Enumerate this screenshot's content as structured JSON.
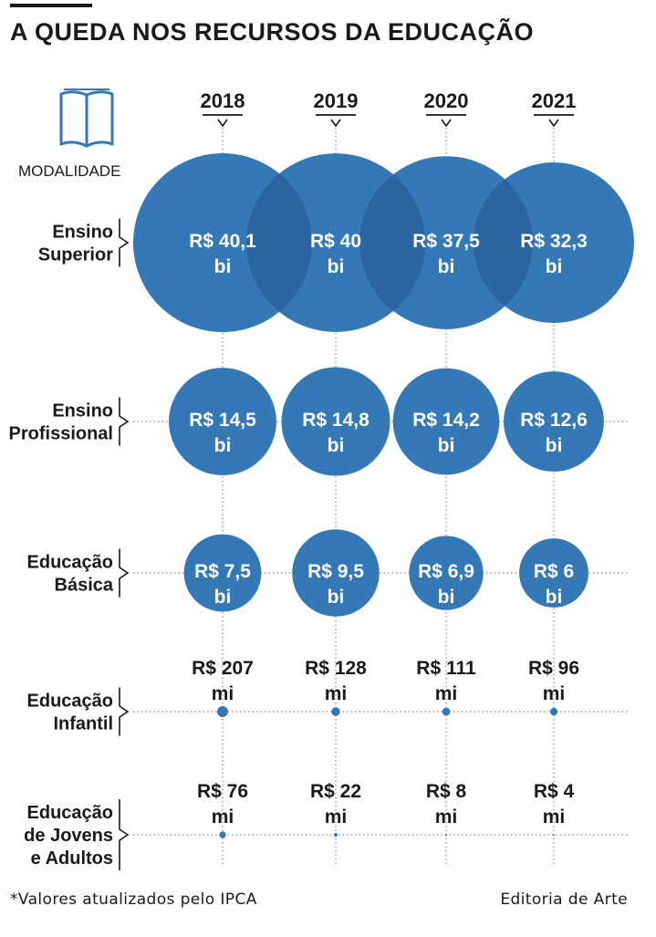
{
  "title": "A QUEDA NOS RECURSOS DA EDUCAÇÃO",
  "modality_header": "MODALIDADE",
  "footnote": "*Valores atualizados pelo IPCA",
  "credit": "Editoria de Arte",
  "chart_data": {
    "type": "bubble",
    "years": [
      "2018",
      "2019",
      "2020",
      "2021"
    ],
    "rows": [
      {
        "label_lines": [
          "Ensino",
          "Superior"
        ],
        "values": [
          40.1,
          40,
          37.5,
          32.3
        ],
        "unit": "bi",
        "value_labels": [
          "R$ 40,1",
          "R$ 40",
          "R$ 37,5",
          "R$ 32,3"
        ],
        "unit_labels": [
          "bi",
          "bi",
          "bi",
          "bi"
        ]
      },
      {
        "label_lines": [
          "Ensino",
          "Profissional"
        ],
        "values": [
          14.5,
          14.8,
          14.2,
          12.6
        ],
        "unit": "bi",
        "value_labels": [
          "R$ 14,5",
          "R$ 14,8",
          "R$ 14,2",
          "R$ 12,6"
        ],
        "unit_labels": [
          "bi",
          "bi",
          "bi",
          "bi"
        ]
      },
      {
        "label_lines": [
          "Educação",
          "Básica"
        ],
        "values": [
          7.5,
          9.5,
          6.9,
          6
        ],
        "unit": "bi",
        "value_labels": [
          "R$ 7,5",
          "R$ 9,5",
          "R$ 6,9",
          "R$ 6"
        ],
        "unit_labels": [
          "bi",
          "bi",
          "bi",
          "bi"
        ]
      },
      {
        "label_lines": [
          "Educação",
          "Infantil"
        ],
        "values": [
          207,
          128,
          111,
          96
        ],
        "unit": "mi",
        "value_labels": [
          "R$ 207",
          "R$ 128",
          "R$ 111",
          "R$ 96"
        ],
        "unit_labels": [
          "mi",
          "mi",
          "mi",
          "mi"
        ]
      },
      {
        "label_lines": [
          "Educação",
          "de Jovens",
          "e Adultos"
        ],
        "values": [
          76,
          22,
          8,
          4
        ],
        "unit": "mi",
        "value_labels": [
          "R$ 76",
          "R$ 22",
          "R$ 8",
          "R$ 4"
        ],
        "unit_labels": [
          "mi",
          "mi",
          "mi",
          "mi"
        ]
      }
    ],
    "colors": {
      "bubble": "#3478b6",
      "overlap": "#2a64a1",
      "bubble_text": "#ffffff",
      "text": "#1a1a1a",
      "grid": "#8a8a8a"
    }
  }
}
